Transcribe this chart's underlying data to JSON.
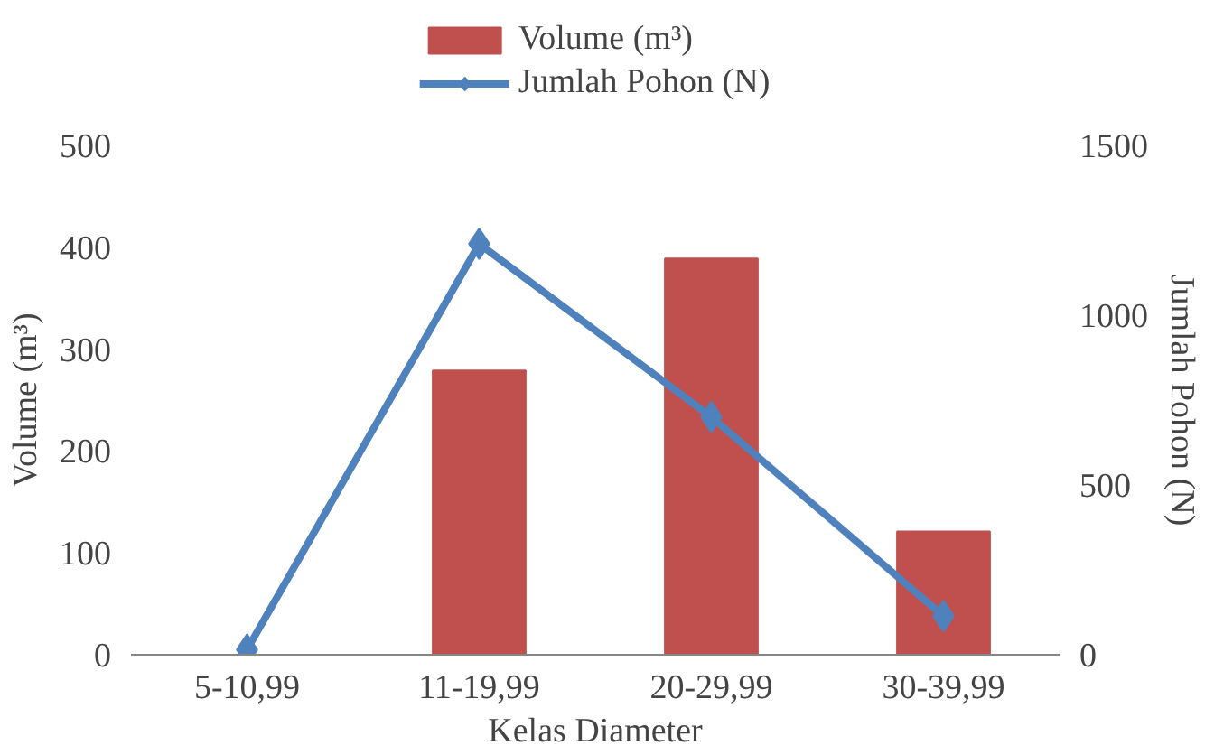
{
  "chart_data": {
    "type": "bar",
    "xlabel": "Kelas Diameter",
    "ylabel": "Volume (m³)",
    "y2label": "Jumlah Pohon (N)",
    "categories": [
      "5-10,99",
      "11-19,99",
      "20-29,99",
      "30-39,99"
    ],
    "series": [
      {
        "name": "Volume (m³)",
        "color": "#c0504d",
        "values": [
          0,
          279,
          389,
          121
        ]
      },
      {
        "name": "Jumlah Pohon (N)",
        "type": "line",
        "axis": "y2",
        "color": "#4f81bd",
        "marker": "diamond",
        "values": [
          15,
          1210,
          700,
          114
        ]
      }
    ],
    "ylim": [
      0,
      500
    ],
    "yticks": [
      0,
      100,
      200,
      300,
      400,
      500
    ],
    "y2lim": [
      0,
      1500
    ],
    "y2ticks": [
      0,
      500,
      1000,
      1500
    ],
    "grid": false,
    "legend": "top"
  }
}
